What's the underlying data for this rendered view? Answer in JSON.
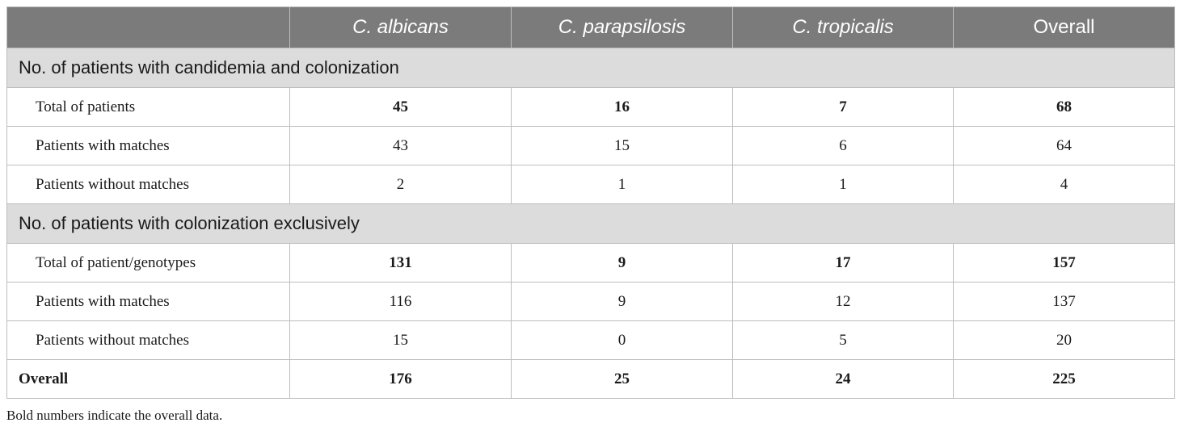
{
  "table": {
    "headers": [
      "",
      "C. albicans",
      "C. parapsilosis",
      "C. tropicalis",
      "Overall"
    ],
    "section1": {
      "title": "No. of patients with candidemia and colonization",
      "rows": [
        {
          "label": "Total of patients",
          "values": [
            "45",
            "16",
            "7",
            "68"
          ],
          "bold": true
        },
        {
          "label": "Patients with matches",
          "values": [
            "43",
            "15",
            "6",
            "64"
          ],
          "bold": false
        },
        {
          "label": "Patients without matches",
          "values": [
            "2",
            "1",
            "1",
            "4"
          ],
          "bold": false
        }
      ]
    },
    "section2": {
      "title": "No. of patients with colonization exclusively",
      "rows": [
        {
          "label": "Total of patient/genotypes",
          "values": [
            "131",
            "9",
            "17",
            "157"
          ],
          "bold": true
        },
        {
          "label": "Patients with matches",
          "values": [
            "116",
            "9",
            "12",
            "137"
          ],
          "bold": false
        },
        {
          "label": "Patients without matches",
          "values": [
            "15",
            "0",
            "5",
            "20"
          ],
          "bold": false
        }
      ]
    },
    "overall": {
      "label": "Overall",
      "values": [
        "176",
        "25",
        "24",
        "225"
      ]
    }
  },
  "footnote": "Bold numbers indicate the overall data.",
  "colors": {
    "header_bg": "#7b7b7b",
    "section_bg": "#dcdcdc",
    "border": "#bdbdbd"
  }
}
